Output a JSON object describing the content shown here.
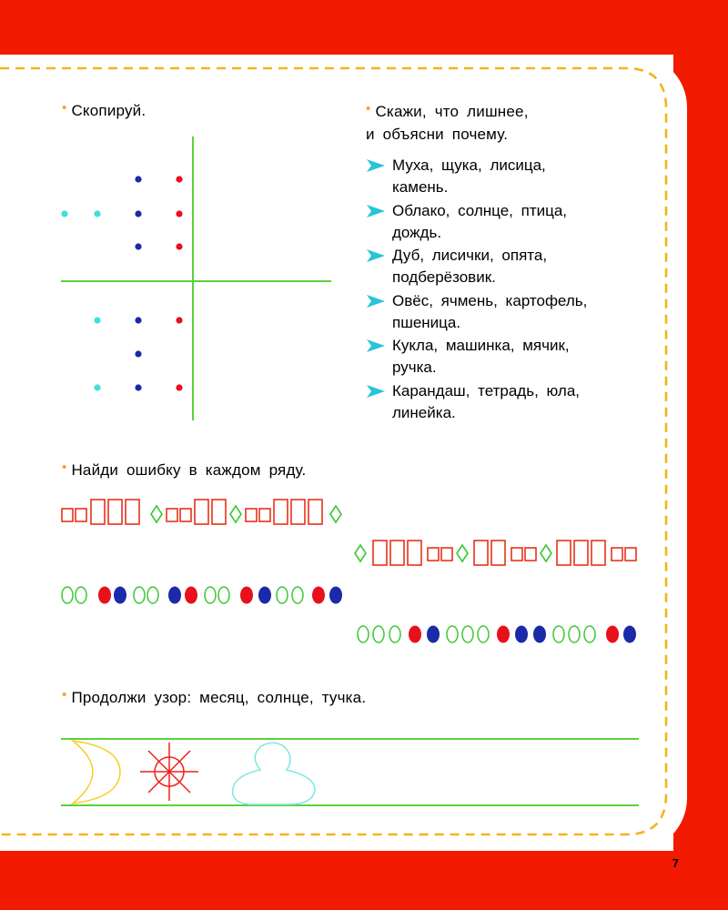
{
  "page_number": "7",
  "tasks": {
    "copy": {
      "title": "Скопируй."
    },
    "odd_one": {
      "title_line1": "Скажи, что лишнее,",
      "title_line2": "и объясни почему.",
      "items": [
        {
          "line1": "Муха, щука, лисица,",
          "line2": "камень."
        },
        {
          "line1": "Облако, солнце, птица,",
          "line2": "дождь."
        },
        {
          "line1": "Дуб, лисички, опята,",
          "line2": "подберёзовик."
        },
        {
          "line1": "Овёс, ячмень, картофель,",
          "line2": "пшеница."
        },
        {
          "line1": "Кукла, машинка, мячик,",
          "line2": "ручка."
        },
        {
          "line1": "Карандаш, тетрадь, юла,",
          "line2": "линейка."
        }
      ]
    },
    "find_error": {
      "title": "Найди ошибку в каждом ряду."
    },
    "pattern": {
      "title": "Продолжи узор: месяц, солнце, тучка."
    }
  },
  "colors": {
    "frame": "#f21a00",
    "dash": "#f7b21b",
    "bullet": "#f7a21b",
    "arrow": "#27c5d8",
    "green_line": "#5bd23c",
    "dot_navy": "#1a2aa8",
    "dot_red": "#e8101a",
    "dot_cyan": "#3fe0d8",
    "shape_red": "#e8321a",
    "shape_green": "#3cc832",
    "moon": "#f5cf22",
    "sun": "#f0201a",
    "cloud": "#7ee8e0"
  },
  "icons": {
    "arrow": "arrow-right-icon",
    "moon": "crescent-moon-icon",
    "sun": "sun-icon",
    "cloud": "cloud-icon"
  }
}
